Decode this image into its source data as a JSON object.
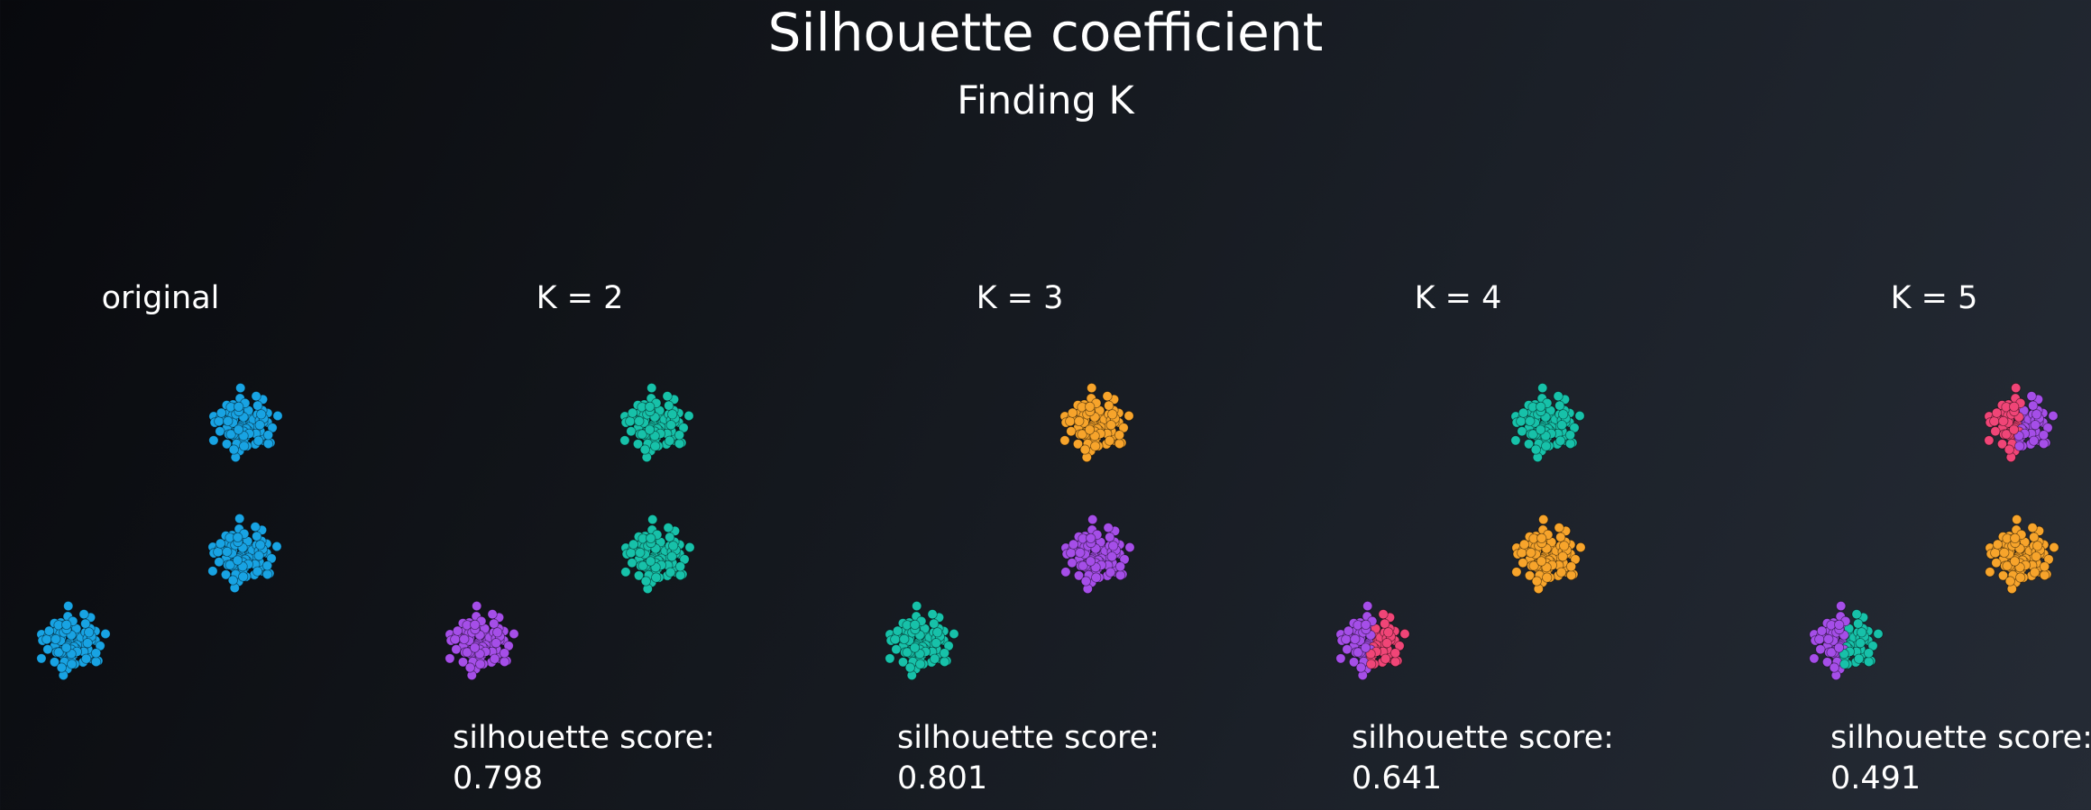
{
  "title": "Silhouette coefficient",
  "subtitle": "Finding K",
  "score_label": "silhouette score:",
  "chart_data": {
    "type": "scatter",
    "colors": {
      "blue": "#18a3e3",
      "teal": "#17c1a9",
      "purple": "#a54ee8",
      "orange": "#f7a42b",
      "pink": "#f04577"
    },
    "panels": [
      {
        "label": "original",
        "score": "",
        "clusters": [
          {
            "blob": "top",
            "colors": [
              "blue"
            ]
          },
          {
            "blob": "middle",
            "colors": [
              "blue"
            ]
          },
          {
            "blob": "bottom",
            "colors": [
              "blue"
            ]
          }
        ]
      },
      {
        "label": "K = 2",
        "score": "0.798",
        "clusters": [
          {
            "blob": "top",
            "colors": [
              "teal"
            ]
          },
          {
            "blob": "middle",
            "colors": [
              "teal"
            ]
          },
          {
            "blob": "bottom",
            "colors": [
              "purple"
            ]
          }
        ]
      },
      {
        "label": "K = 3",
        "score": "0.801",
        "clusters": [
          {
            "blob": "top",
            "colors": [
              "orange"
            ]
          },
          {
            "blob": "middle",
            "colors": [
              "purple"
            ]
          },
          {
            "blob": "bottom",
            "colors": [
              "teal"
            ]
          }
        ]
      },
      {
        "label": "K = 4",
        "score": "0.641",
        "clusters": [
          {
            "blob": "top",
            "colors": [
              "teal"
            ]
          },
          {
            "blob": "middle",
            "colors": [
              "orange"
            ]
          },
          {
            "blob": "bottom",
            "colors": [
              "purple",
              "pink"
            ]
          }
        ]
      },
      {
        "label": "K = 5",
        "score": "0.491",
        "clusters": [
          {
            "blob": "top",
            "colors": [
              "pink",
              "purple"
            ]
          },
          {
            "blob": "middle",
            "colors": [
              "orange"
            ]
          },
          {
            "blob": "bottom",
            "colors": [
              "purple",
              "teal"
            ]
          }
        ]
      }
    ]
  }
}
